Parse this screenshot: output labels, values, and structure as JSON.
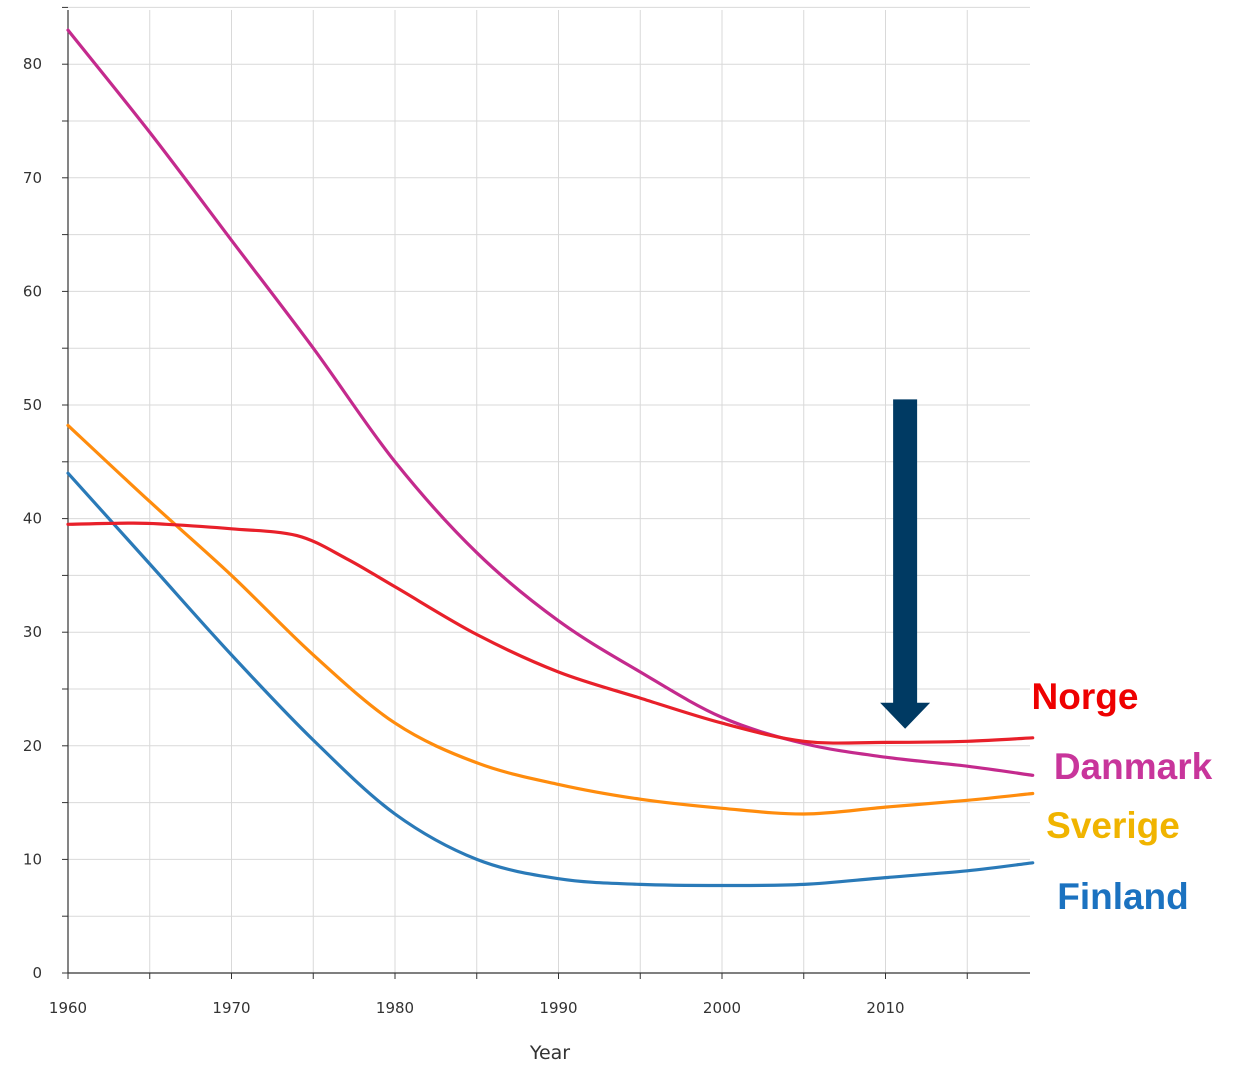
{
  "chart_data": {
    "type": "line",
    "xlabel": "Year",
    "ylabel": "",
    "xlim": [
      1960,
      2019
    ],
    "ylim": [
      0,
      85
    ],
    "x_ticks": [
      "1960",
      "1970",
      "1980",
      "1990",
      "2000",
      "2010"
    ],
    "y_ticks": [
      "0",
      "10",
      "20",
      "30",
      "40",
      "50",
      "60",
      "70",
      "80"
    ],
    "grid": true,
    "legend": "inline labels at right end of lines",
    "series": [
      {
        "name": "Norge",
        "color": "#e8202a",
        "label_color": "#ee0000",
        "x": [
          1960,
          1964,
          1966,
          1970,
          1974,
          1977,
          1980,
          1985,
          1990,
          1995,
          2000,
          2005,
          2010,
          2015,
          2019
        ],
        "values": [
          39.5,
          39.6,
          39.5,
          39.1,
          38.5,
          36.5,
          34.0,
          29.8,
          26.5,
          24.2,
          22.0,
          20.4,
          20.3,
          20.4,
          20.7
        ]
      },
      {
        "name": "Danmark",
        "color": "#c42a8d",
        "label_color": "#c8359b",
        "x": [
          1960,
          1965,
          1970,
          1975,
          1980,
          1985,
          1990,
          1995,
          2000,
          2005,
          2010,
          2015,
          2019
        ],
        "values": [
          83.0,
          74.0,
          64.5,
          55.0,
          45.0,
          37.0,
          31.0,
          26.5,
          22.5,
          20.2,
          19.0,
          18.2,
          17.4
        ]
      },
      {
        "name": "Sverige",
        "color": "#ff8c0d",
        "label_color": "#f0b400",
        "x": [
          1960,
          1965,
          1970,
          1975,
          1980,
          1985,
          1990,
          1995,
          2000,
          2005,
          2010,
          2015,
          2019
        ],
        "values": [
          48.2,
          41.5,
          35.0,
          28.0,
          22.0,
          18.5,
          16.6,
          15.3,
          14.5,
          14.0,
          14.6,
          15.2,
          15.8
        ]
      },
      {
        "name": "Finland",
        "color": "#2a7ab8",
        "label_color": "#1b72c0",
        "x": [
          1960,
          1965,
          1970,
          1975,
          1980,
          1985,
          1990,
          1995,
          2000,
          2005,
          2010,
          2015,
          2019
        ],
        "values": [
          44.0,
          36.0,
          28.0,
          20.5,
          14.0,
          10.0,
          8.3,
          7.8,
          7.7,
          7.8,
          8.4,
          9.0,
          9.7
        ]
      }
    ],
    "annotations": [
      {
        "type": "arrow",
        "direction": "down",
        "color": "#003a63",
        "x": 2011.2,
        "y_from": 50.5,
        "y_to": 21.5
      }
    ]
  }
}
